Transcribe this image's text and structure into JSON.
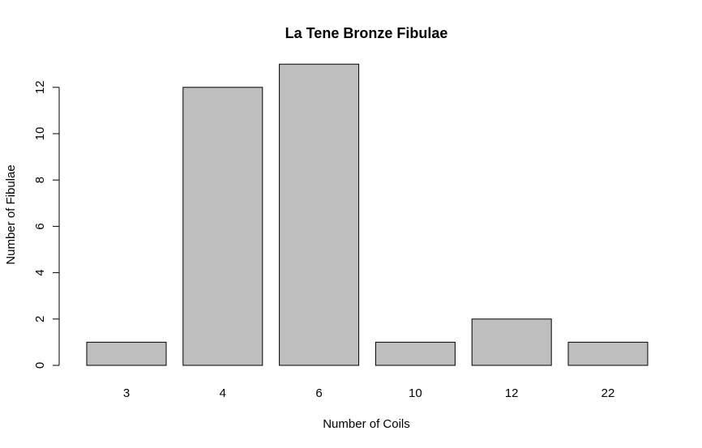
{
  "chart_data": {
    "type": "bar",
    "title": "La Tene Bronze Fibulae",
    "xlabel": "Number of Coils",
    "ylabel": "Number of Fibulae",
    "categories": [
      "3",
      "4",
      "6",
      "10",
      "12",
      "22"
    ],
    "values": [
      1,
      12,
      13,
      1,
      2,
      1
    ],
    "ylim": [
      0,
      13
    ],
    "yticks": [
      0,
      2,
      4,
      6,
      8,
      10,
      12
    ],
    "bar_color": "#bebebe",
    "border_color": "#000000",
    "grid": false,
    "legend": "none"
  }
}
